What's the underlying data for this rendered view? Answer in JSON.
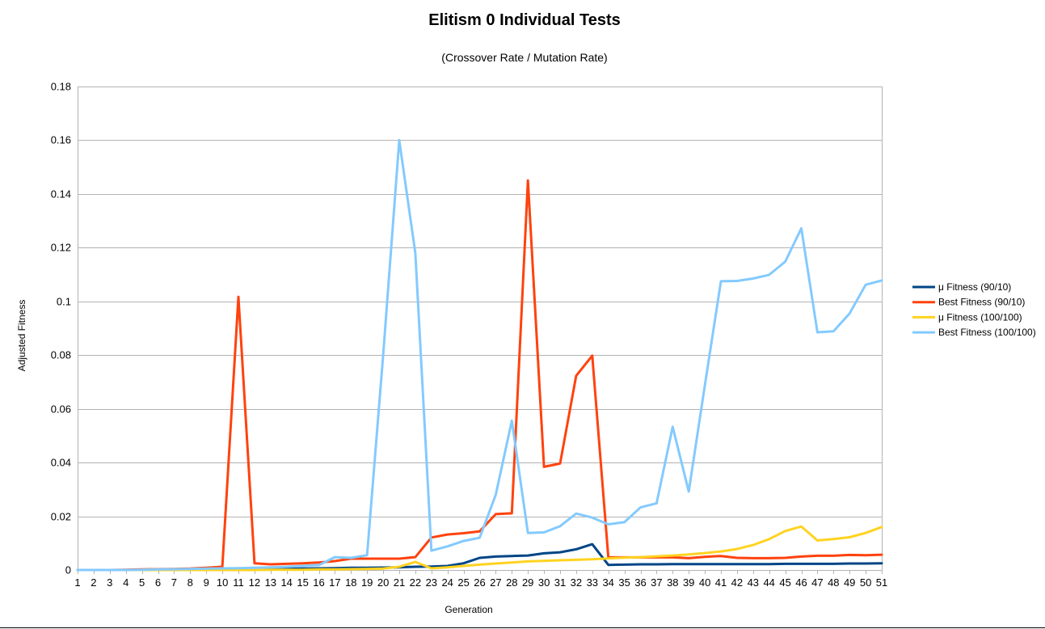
{
  "chart_data": {
    "type": "line",
    "title": "Elitism 0 Individual Tests",
    "subtitle": "(Crossover Rate / Mutation Rate)",
    "xlabel": "Generation",
    "ylabel": "Adjusted Fitness",
    "x": [
      1,
      2,
      3,
      4,
      5,
      6,
      7,
      8,
      9,
      10,
      11,
      12,
      13,
      14,
      15,
      16,
      17,
      18,
      19,
      20,
      21,
      22,
      23,
      24,
      25,
      26,
      27,
      28,
      29,
      30,
      31,
      32,
      33,
      34,
      35,
      36,
      37,
      38,
      39,
      40,
      41,
      42,
      43,
      44,
      45,
      46,
      47,
      48,
      49,
      50,
      51
    ],
    "ylim": [
      0,
      0.18
    ],
    "yticks": [
      0,
      0.02,
      0.04,
      0.06,
      0.08,
      0.1,
      0.12,
      0.14,
      0.16,
      0.18
    ],
    "ytick_labels": [
      "0",
      "0.02",
      "0.04",
      "0.06",
      "0.08",
      "0.1",
      "0.12",
      "0.14",
      "0.16",
      "0.18"
    ],
    "grid": true,
    "legend_position": "right",
    "series": [
      {
        "name": "μ Fitness (90/10)",
        "color": "#004586",
        "values": [
          0,
          0,
          0,
          0,
          0.0001,
          0.0002,
          0.0002,
          0.0003,
          0.0003,
          0.0003,
          0.0004,
          0.0004,
          0.0005,
          0.0005,
          0.0005,
          0.0006,
          0.0007,
          0.0008,
          0.0008,
          0.0009,
          0.001,
          0.0012,
          0.0013,
          0.0015,
          0.0025,
          0.0045,
          0.005,
          0.0052,
          0.0054,
          0.0062,
          0.0066,
          0.0077,
          0.0096,
          0.0019,
          0.002,
          0.0021,
          0.0021,
          0.0022,
          0.0022,
          0.0022,
          0.0022,
          0.0022,
          0.0022,
          0.0022,
          0.0023,
          0.0023,
          0.0023,
          0.0023,
          0.0024,
          0.0024,
          0.0025
        ]
      },
      {
        "name": "Best Fitness (90/10)",
        "color": "#ff420e",
        "values": [
          0,
          0,
          0,
          0.0001,
          0.0002,
          0.0003,
          0.0004,
          0.0005,
          0.0008,
          0.0012,
          0.1017,
          0.0025,
          0.0021,
          0.0023,
          0.0025,
          0.0028,
          0.0033,
          0.0042,
          0.0042,
          0.0042,
          0.0042,
          0.0048,
          0.0121,
          0.0132,
          0.0137,
          0.0144,
          0.0208,
          0.0211,
          0.145,
          0.0384,
          0.0396,
          0.0723,
          0.0798,
          0.0047,
          0.0047,
          0.0047,
          0.0047,
          0.0047,
          0.0044,
          0.0049,
          0.0052,
          0.0045,
          0.0044,
          0.0044,
          0.0045,
          0.005,
          0.0053,
          0.0053,
          0.0056,
          0.0055,
          0.0057
        ]
      },
      {
        "name": "μ Fitness (100/100)",
        "color": "#ffd320",
        "values": [
          0,
          0,
          0,
          0,
          0,
          0,
          0,
          0,
          0,
          0,
          0,
          0,
          0.0001,
          0.0001,
          0.0001,
          0.0002,
          0.0002,
          0.0003,
          0.0004,
          0.0005,
          0.0012,
          0.003,
          0.0006,
          0.001,
          0.0015,
          0.002,
          0.0024,
          0.0028,
          0.0032,
          0.0034,
          0.0036,
          0.0038,
          0.004,
          0.0043,
          0.0046,
          0.0048,
          0.0051,
          0.0054,
          0.0058,
          0.0063,
          0.0069,
          0.0078,
          0.0093,
          0.0115,
          0.0145,
          0.0162,
          0.011,
          0.0115,
          0.0122,
          0.0138,
          0.016
        ]
      },
      {
        "name": "Best Fitness (100/100)",
        "color": "#83caff",
        "values": [
          0,
          0,
          0,
          0,
          0.0001,
          0.0002,
          0.0003,
          0.0004,
          0.0005,
          0.0006,
          0.0007,
          0.0008,
          0.001,
          0.0012,
          0.0015,
          0.0018,
          0.0048,
          0.0045,
          0.0055,
          0.08,
          0.16,
          0.118,
          0.0072,
          0.0088,
          0.0108,
          0.012,
          0.028,
          0.0556,
          0.0138,
          0.014,
          0.0163,
          0.021,
          0.0195,
          0.017,
          0.0178,
          0.0233,
          0.0248,
          0.0533,
          0.0292,
          0.0687,
          0.1075,
          0.1076,
          0.1085,
          0.1099,
          0.1148,
          0.1272,
          0.0885,
          0.0889,
          0.0955,
          0.1062,
          0.1078
        ]
      }
    ]
  }
}
